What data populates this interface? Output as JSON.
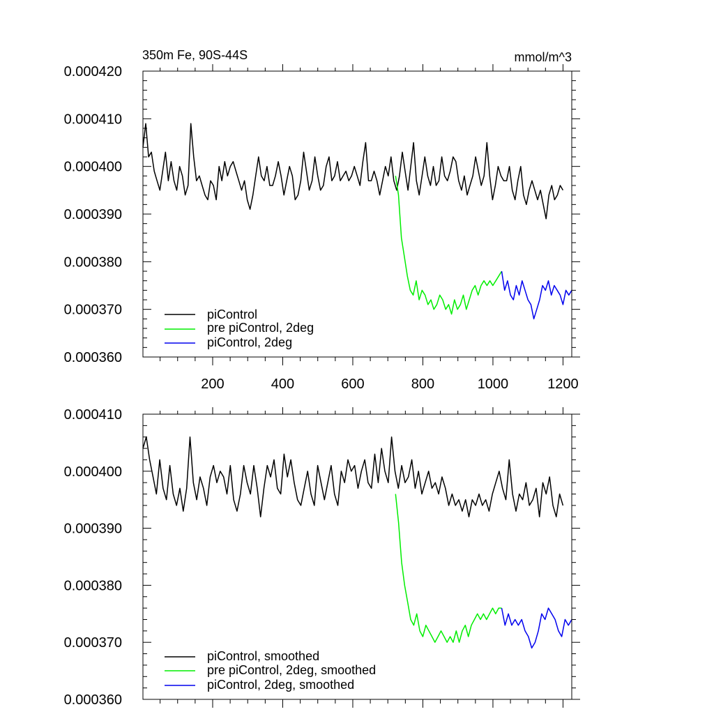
{
  "chart_data": [
    {
      "type": "line",
      "title_left": "350m Fe, 90S-44S",
      "title_right": "mmol/m^3",
      "xlim": [
        1,
        1225
      ],
      "ylim": [
        0.00036,
        0.00042
      ],
      "x_ticks": [
        200,
        400,
        600,
        800,
        1000,
        1200
      ],
      "x_tick_labels": [
        "200",
        "400",
        "600",
        "800",
        "1000",
        "1200"
      ],
      "y_ticks": [
        0.00036,
        0.00037,
        0.00038,
        0.00039,
        0.0004,
        0.00041,
        0.00042
      ],
      "y_tick_labels": [
        "0.000360",
        "0.000370",
        "0.000380",
        "0.000390",
        "0.000400",
        "0.000410",
        "0.000420"
      ],
      "series": [
        {
          "name": "piControl",
          "color": "#000000",
          "x_start": 1,
          "x_end": 1200,
          "values": [
            0.000404,
            0.000409,
            0.000402,
            0.000403,
            0.000399,
            0.000397,
            0.000395,
            0.000399,
            0.000403,
            0.000397,
            0.000401,
            0.000397,
            0.000395,
            0.0004,
            0.000398,
            0.000394,
            0.000396,
            0.000409,
            0.000402,
            0.000397,
            0.000398,
            0.000396,
            0.000394,
            0.000393,
            0.000397,
            0.000396,
            0.000393,
            0.0004,
            0.000397,
            0.000401,
            0.000398,
            0.0004,
            0.000401,
            0.000399,
            0.000397,
            0.000395,
            0.000397,
            0.000393,
            0.000391,
            0.000394,
            0.000398,
            0.000402,
            0.000398,
            0.000397,
            0.0004,
            0.000396,
            0.000396,
            0.000398,
            0.000401,
            0.000398,
            0.000394,
            0.000397,
            0.0004,
            0.000398,
            0.000393,
            0.000394,
            0.000397,
            0.000403,
            0.000399,
            0.000395,
            0.000397,
            0.000402,
            0.000398,
            0.000395,
            0.000396,
            0.0004,
            0.000402,
            0.000397,
            0.000398,
            0.000401,
            0.000397,
            0.000398,
            0.000399,
            0.000397,
            0.000398,
            0.0004,
            0.000398,
            0.000396,
            0.000401,
            0.000405,
            0.000397,
            0.000397,
            0.000399,
            0.000397,
            0.000394,
            0.000397,
            0.0004,
            0.000398,
            0.000402,
            0.000397,
            0.000395,
            0.000398,
            0.000403,
            0.000399,
            0.000395,
            0.0004,
            0.000405,
            0.000397,
            0.000394,
            0.000398,
            0.000402,
            0.000398,
            0.000396,
            0.0004,
            0.000396,
            0.000397,
            0.000402,
            0.000398,
            0.000397,
            0.000399,
            0.000402,
            0.000401,
            0.000397,
            0.000395,
            0.000398,
            0.000394,
            0.000396,
            0.000398,
            0.000402,
            0.000399,
            0.000396,
            0.000398,
            0.000405,
            0.000398,
            0.000393,
            0.000396,
            0.0004,
            0.000398,
            0.000397,
            0.000397,
            0.0004,
            0.000395,
            0.000393,
            0.000397,
            0.0004,
            0.000394,
            0.000392,
            0.000395,
            0.000397,
            0.000395,
            0.000393,
            0.000395,
            0.000392,
            0.000389,
            0.000394,
            0.000396,
            0.000393,
            0.000394,
            0.000396,
            0.000395
          ]
        },
        {
          "name": "pre piControl, 2deg",
          "color": "#00ee00",
          "x_start": 722,
          "x_end": 1025,
          "values": [
            0.000398,
            0.000394,
            0.000385,
            0.000381,
            0.000377,
            0.000374,
            0.000373,
            0.000376,
            0.000372,
            0.000374,
            0.000373,
            0.000371,
            0.000372,
            0.00037,
            0.000371,
            0.000373,
            0.000372,
            0.00037,
            0.000371,
            0.000369,
            0.000372,
            0.00037,
            0.000371,
            0.000373,
            0.00037,
            0.000372,
            0.000374,
            0.000375,
            0.000373,
            0.000375,
            0.000376,
            0.000375,
            0.000376,
            0.000375,
            0.000376,
            0.000377,
            0.000378
          ]
        },
        {
          "name": "piControl, 2deg",
          "color": "#0000ee",
          "x_start": 1025,
          "x_end": 1225,
          "values": [
            0.000378,
            0.000374,
            0.000376,
            0.000373,
            0.000372,
            0.000375,
            0.000373,
            0.000376,
            0.000374,
            0.000372,
            0.000371,
            0.000368,
            0.00037,
            0.000372,
            0.000375,
            0.000374,
            0.000376,
            0.000373,
            0.000375,
            0.000374,
            0.000373,
            0.000371,
            0.000374,
            0.000373,
            0.000374
          ]
        }
      ],
      "legend": [
        "piControl",
        "pre piControl, 2deg",
        "piControl, 2deg"
      ],
      "legend_position": "bottom-left"
    },
    {
      "type": "line",
      "title_left": "",
      "title_right": "",
      "xlim": [
        1,
        1225
      ],
      "ylim": [
        0.00036,
        0.00041
      ],
      "x_ticks": [
        200,
        400,
        600,
        800,
        1000,
        1200
      ],
      "x_tick_labels": [],
      "y_ticks": [
        0.00036,
        0.00037,
        0.00038,
        0.00039,
        0.0004,
        0.00041
      ],
      "y_tick_labels": [
        "0.000360",
        "0.000370",
        "0.000380",
        "0.000390",
        "0.000400",
        "0.000410"
      ],
      "series": [
        {
          "name": "piControl, smoothed",
          "color": "#000000",
          "x_start": 1,
          "x_end": 1200,
          "values": [
            0.000404,
            0.000406,
            0.000402,
            0.000399,
            0.000396,
            0.000402,
            0.000397,
            0.000395,
            0.000401,
            0.000396,
            0.000394,
            0.000397,
            0.000393,
            0.000397,
            0.000406,
            0.000398,
            0.000395,
            0.000399,
            0.000397,
            0.000394,
            0.000399,
            0.000401,
            0.000398,
            0.0004,
            0.000399,
            0.000396,
            0.000401,
            0.000395,
            0.000393,
            0.000396,
            0.000401,
            0.000398,
            0.000396,
            0.000401,
            0.000397,
            0.000392,
            0.000397,
            0.000401,
            0.000399,
            0.000402,
            0.000397,
            0.000396,
            0.000403,
            0.000399,
            0.000402,
            0.000398,
            0.000395,
            0.000394,
            0.000397,
            0.0004,
            0.000396,
            0.000394,
            0.000401,
            0.000398,
            0.000395,
            0.000398,
            0.000401,
            0.000396,
            0.000394,
            0.0004,
            0.000398,
            0.000402,
            0.0004,
            0.000401,
            0.000397,
            0.0004,
            0.000402,
            0.000398,
            0.000397,
            0.000403,
            0.000398,
            0.000404,
            0.0004,
            0.000398,
            0.000406,
            0.0004,
            0.000397,
            0.000401,
            0.000398,
            0.000399,
            0.000402,
            0.000397,
            0.0004,
            0.000396,
            0.000398,
            0.0004,
            0.000397,
            0.000398,
            0.000396,
            0.000399,
            0.000397,
            0.000394,
            0.000396,
            0.000394,
            0.000395,
            0.000393,
            0.000395,
            0.000392,
            0.000395,
            0.000394,
            0.000396,
            0.000394,
            0.000395,
            0.000393,
            0.000396,
            0.000398,
            0.0004,
            0.000397,
            0.000395,
            0.000402,
            0.000396,
            0.000393,
            0.000396,
            0.000395,
            0.000398,
            0.000394,
            0.000395,
            0.000397,
            0.000392,
            0.000398,
            0.000396,
            0.000399,
            0.000394,
            0.000392,
            0.000396,
            0.000394
          ]
        },
        {
          "name": "pre piControl, 2deg, smoothed",
          "color": "#00ee00",
          "x_start": 722,
          "x_end": 1025,
          "values": [
            0.000396,
            0.000391,
            0.000384,
            0.00038,
            0.000377,
            0.000374,
            0.000373,
            0.000375,
            0.000372,
            0.000371,
            0.000373,
            0.000372,
            0.000371,
            0.00037,
            0.000371,
            0.000372,
            0.000371,
            0.00037,
            0.000371,
            0.00037,
            0.000372,
            0.00037,
            0.000372,
            0.000373,
            0.000371,
            0.000373,
            0.000374,
            0.000375,
            0.000374,
            0.000375,
            0.000374,
            0.000375,
            0.000376,
            0.000375,
            0.000376,
            0.000376
          ]
        },
        {
          "name": "piControl, 2deg, smoothed",
          "color": "#0000ee",
          "x_start": 1025,
          "x_end": 1225,
          "values": [
            0.000376,
            0.000373,
            0.000375,
            0.000373,
            0.000374,
            0.000373,
            0.000374,
            0.000372,
            0.000371,
            0.000369,
            0.00037,
            0.000372,
            0.000375,
            0.000374,
            0.000376,
            0.000375,
            0.000374,
            0.000372,
            0.000371,
            0.000374,
            0.000373,
            0.000374
          ]
        }
      ],
      "legend": [
        "piControl, smoothed",
        "pre piControl, 2deg, smoothed",
        "piControl, 2deg, smoothed"
      ],
      "legend_position": "bottom-left"
    }
  ]
}
